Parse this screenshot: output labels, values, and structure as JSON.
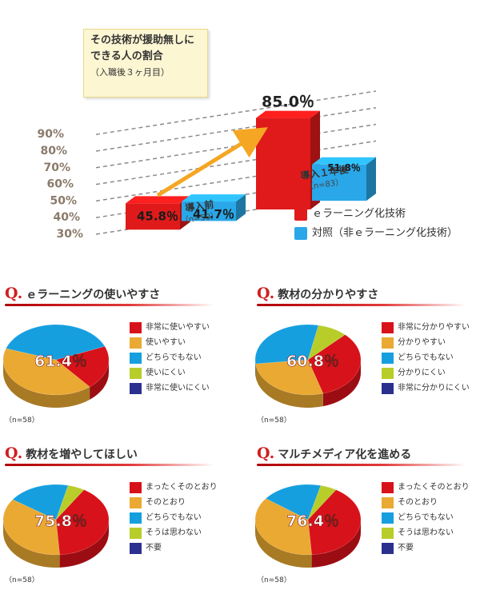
{
  "top": {
    "callout_lines": [
      "その技術が援助無しに",
      "できる人の割合",
      "（入職後３ヶ月目）"
    ],
    "legend": [
      {
        "label": "ｅラーニング化技術",
        "color": "#e01a1a"
      },
      {
        "label": "対照（非ｅラーニング化技術）",
        "color": "#29a7e8"
      }
    ],
    "colors": {
      "red": "#e01a1a",
      "blue": "#29a7e8"
    },
    "chart_data": {
      "type": "bar",
      "ytick_labels": [
        "30%",
        "40%",
        "50%",
        "60%",
        "70%",
        "80%",
        "90%"
      ],
      "ylim": [
        30,
        95
      ],
      "categories": [
        {
          "label": "導入前",
          "sub": "（n=50）"
        },
        {
          "label": "導入１年後",
          "sub": "（n=83）"
        }
      ],
      "series": [
        {
          "name": "ｅラーニング化技術",
          "values": [
            45.8,
            85.0
          ],
          "labels": [
            "45.8％",
            "85.0％"
          ]
        },
        {
          "name": "対照（非ｅラーニング化技術）",
          "values": [
            41.7,
            51.8
          ],
          "labels": [
            "41.7％",
            "51.8％"
          ]
        }
      ]
    }
  },
  "panels": [
    {
      "q": "Q.",
      "title": "ｅラーニングの使いやすさ",
      "n": "（n=58）",
      "center_label": "61.4％",
      "chart_data": {
        "type": "pie",
        "labels": [
          "非常に使いやすい",
          "使いやすい",
          "どちらでもない",
          "使いにくい",
          "非常に使いにくい"
        ],
        "values": [
          20.2,
          41.2,
          38.6,
          0,
          0
        ],
        "colors": [
          "#d8121a",
          "#eaa932",
          "#169fdf",
          "#b8cd2a",
          "#2b2f8e"
        ]
      }
    },
    {
      "q": "Q.",
      "title": "教材の分かりやすさ",
      "n": "（n=58）",
      "center_label": "60.8％",
      "chart_data": {
        "type": "pie",
        "labels": [
          "非常に分かりやすい",
          "分かりやすい",
          "どちらでもない",
          "分かりにくい",
          "非常に分かりにくい"
        ],
        "values": [
          33.0,
          27.8,
          30.0,
          9.2,
          0
        ],
        "colors": [
          "#d8121a",
          "#eaa932",
          "#169fdf",
          "#b8cd2a",
          "#2b2f8e"
        ]
      }
    },
    {
      "q": "Q.",
      "title": "教材を増やしてほしい",
      "n": "（n=58）",
      "center_label": "75.8％",
      "chart_data": {
        "type": "pie",
        "labels": [
          "まったくそのとおり",
          "そのとおり",
          "どちらでもない",
          "そうは思わない",
          "不要"
        ],
        "values": [
          40.0,
          35.8,
          19.0,
          5.2,
          0
        ],
        "colors": [
          "#d8121a",
          "#eaa932",
          "#169fdf",
          "#b8cd2a",
          "#2b2f8e"
        ]
      }
    },
    {
      "q": "Q.",
      "title": "マルチメディア化を進める",
      "n": "（n=58）",
      "center_label": "76.4％",
      "chart_data": {
        "type": "pie",
        "labels": [
          "まったくそのとおり",
          "そのとおり",
          "どちらでもない",
          "そうは思わない",
          "不要"
        ],
        "values": [
          40.0,
          36.4,
          18.6,
          5.0,
          0
        ],
        "colors": [
          "#d8121a",
          "#eaa932",
          "#169fdf",
          "#b8cd2a",
          "#2b2f8e"
        ]
      }
    }
  ]
}
